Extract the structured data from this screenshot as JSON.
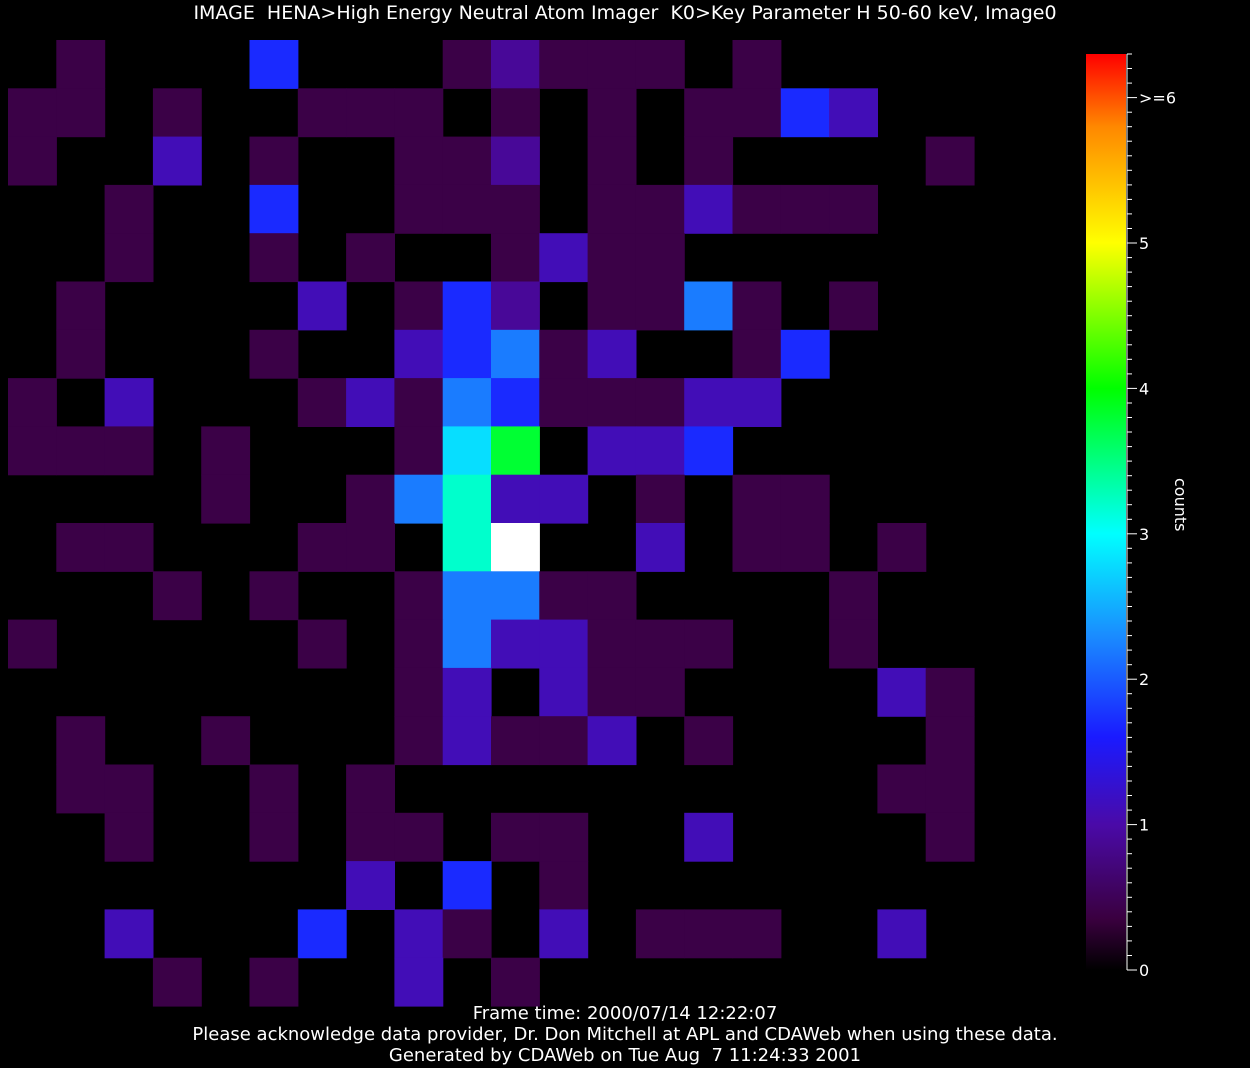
{
  "title": "IMAGE  HENA>High Energy Neutral Atom Imager  K0>Key Parameter H 50-60 keV, Image0",
  "footer": {
    "frame_time": "Frame time: 2000/07/14 12:22:07",
    "acknowledge": "Please acknowledge data provider, Dr. Don Mitchell at APL and CDAWeb when using these data.",
    "generated": "Generated by CDAWeb on Tue Aug  7 11:24:33 2001"
  },
  "colors": {
    "background": "#000000"
  },
  "chart_data": {
    "type": "heatmap",
    "rows": 20,
    "cols": 22,
    "colorbar": {
      "label": "counts",
      "range": [
        0,
        6.3
      ],
      "ticks": [
        0,
        1,
        2,
        3,
        4,
        5
      ],
      "tick_labels": [
        "0",
        "1",
        "2",
        "3",
        "4",
        "5"
      ],
      "max_label": ">=6",
      "colors": [
        {
          "v": 0.0,
          "c": "#000000"
        },
        {
          "v": 0.35,
          "c": "#3a003f"
        },
        {
          "v": 1.0,
          "c": "#4a0aa8"
        },
        {
          "v": 1.6,
          "c": "#1a1aff"
        },
        {
          "v": 2.3,
          "c": "#1a8cff"
        },
        {
          "v": 3.0,
          "c": "#00ffff"
        },
        {
          "v": 3.5,
          "c": "#00ff80"
        },
        {
          "v": 4.0,
          "c": "#00ff00"
        },
        {
          "v": 5.0,
          "c": "#ffff00"
        },
        {
          "v": 5.8,
          "c": "#ff8800"
        },
        {
          "v": 6.3,
          "c": "#ff0000"
        }
      ]
    },
    "values": [
      [
        0,
        0.4,
        0,
        0,
        0,
        1.7,
        0,
        0,
        0,
        0.4,
        0.9,
        0.4,
        0.4,
        0.4,
        0,
        0.4,
        0,
        0,
        0,
        0,
        0,
        0
      ],
      [
        0.4,
        0.4,
        0,
        0.4,
        0,
        0,
        0.4,
        0.4,
        0.4,
        0,
        0.4,
        0,
        0.4,
        0,
        0.4,
        0.4,
        1.7,
        1.1,
        0,
        0,
        0,
        0
      ],
      [
        0.4,
        0,
        0,
        1.1,
        0,
        0.4,
        0,
        0,
        0.4,
        0.4,
        0.9,
        0,
        0.4,
        0,
        0.4,
        0,
        0,
        0,
        0,
        0.4,
        0,
        0
      ],
      [
        0,
        0,
        0.4,
        0,
        0,
        1.7,
        0,
        0,
        0.4,
        0.4,
        0.4,
        0,
        0.4,
        0.4,
        1.1,
        0.4,
        0.4,
        0.4,
        0,
        0,
        0,
        0
      ],
      [
        0,
        0,
        0.4,
        0,
        0,
        0.4,
        0,
        0.4,
        0,
        0,
        0.4,
        1.1,
        0.4,
        0.4,
        0,
        0,
        0,
        0,
        0,
        0,
        0,
        0
      ],
      [
        0,
        0.4,
        0,
        0,
        0,
        0,
        1.1,
        0,
        0.4,
        1.7,
        0.9,
        0,
        0.4,
        0.4,
        2.2,
        0.4,
        0,
        0.4,
        0,
        0,
        0,
        0
      ],
      [
        0,
        0.4,
        0,
        0,
        0,
        0.4,
        0,
        0,
        1.1,
        1.7,
        2.2,
        0.4,
        1.1,
        0,
        0,
        0.4,
        1.7,
        0,
        0,
        0,
        0,
        0
      ],
      [
        0.4,
        0,
        1.1,
        0,
        0,
        0,
        0.4,
        1.1,
        0.4,
        2.2,
        1.7,
        0.4,
        0.4,
        0.4,
        1.1,
        1.1,
        0,
        0,
        0,
        0,
        0,
        0
      ],
      [
        0.4,
        0.4,
        0.4,
        0,
        0.4,
        0,
        0,
        0,
        0.4,
        2.8,
        3.8,
        0,
        1.1,
        1.1,
        1.7,
        0,
        0,
        0,
        0,
        0,
        0,
        0
      ],
      [
        0,
        0,
        0,
        0,
        0.4,
        0,
        0,
        0.4,
        2.2,
        3.2,
        1.1,
        1.1,
        0,
        0.4,
        0,
        0.4,
        0.4,
        0,
        0,
        0,
        0,
        0
      ],
      [
        0,
        0.4,
        0.4,
        0,
        0,
        0,
        0.4,
        0.4,
        0,
        3.2,
        7,
        0,
        0,
        1.1,
        0,
        0.4,
        0.4,
        0,
        0.4,
        0,
        0,
        0
      ],
      [
        0,
        0,
        0,
        0.4,
        0,
        0.4,
        0,
        0,
        0.4,
        2.2,
        2.2,
        0.4,
        0.4,
        0,
        0,
        0,
        0,
        0.4,
        0,
        0,
        0,
        0
      ],
      [
        0.4,
        0,
        0,
        0,
        0,
        0,
        0.4,
        0,
        0.4,
        2.2,
        1.1,
        1.1,
        0.4,
        0.4,
        0.4,
        0,
        0,
        0.4,
        0,
        0,
        0,
        0
      ],
      [
        0,
        0,
        0,
        0,
        0,
        0,
        0,
        0,
        0.4,
        1.1,
        0,
        1.1,
        0.4,
        0.4,
        0,
        0,
        0,
        0,
        1.1,
        0.4,
        0,
        0
      ],
      [
        0,
        0.4,
        0,
        0,
        0.4,
        0,
        0,
        0,
        0.4,
        1.1,
        0.4,
        0.4,
        1.1,
        0,
        0.4,
        0,
        0,
        0,
        0,
        0.4,
        0,
        0
      ],
      [
        0,
        0.4,
        0.4,
        0,
        0,
        0.4,
        0,
        0.4,
        0,
        0,
        0,
        0,
        0,
        0,
        0,
        0,
        0,
        0,
        0.4,
        0.4,
        0,
        0
      ],
      [
        0,
        0,
        0.4,
        0,
        0,
        0.4,
        0,
        0.4,
        0.4,
        0,
        0.4,
        0.4,
        0,
        0,
        1.1,
        0,
        0,
        0,
        0,
        0.4,
        0,
        0
      ],
      [
        0,
        0,
        0,
        0,
        0,
        0,
        0,
        1.1,
        0,
        1.7,
        0,
        0.4,
        0,
        0,
        0,
        0,
        0,
        0,
        0,
        0,
        0,
        0
      ],
      [
        0,
        0,
        1.1,
        0,
        0,
        0,
        1.7,
        0,
        1.1,
        0.4,
        0,
        1.1,
        0,
        0.4,
        0.4,
        0.4,
        0,
        0,
        1.1,
        0,
        0,
        0
      ],
      [
        0,
        0,
        0,
        0.4,
        0,
        0.4,
        0,
        0,
        1.1,
        0,
        0.4,
        0,
        0,
        0,
        0,
        0,
        0,
        0,
        0,
        0,
        0,
        0
      ]
    ]
  }
}
